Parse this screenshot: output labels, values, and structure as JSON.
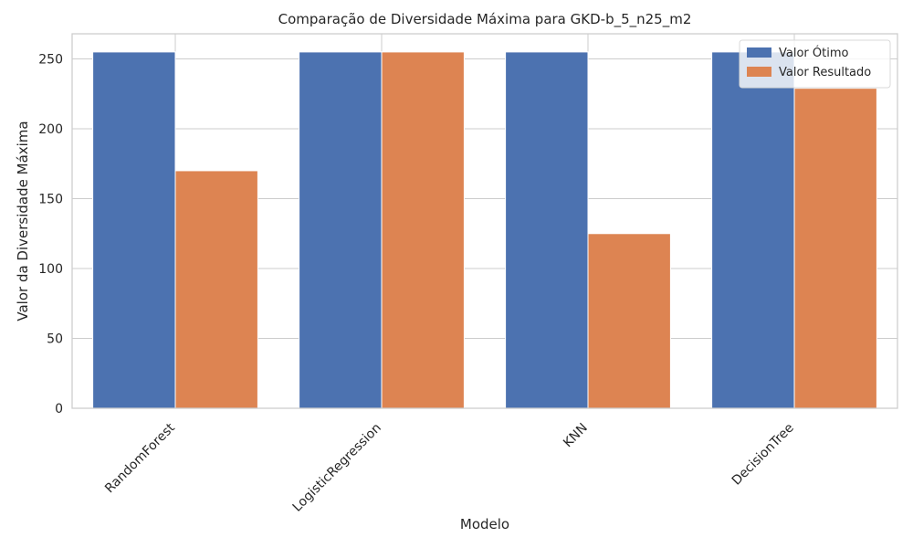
{
  "chart_data": {
    "type": "bar",
    "title": "Comparação de Diversidade Máxima para GKD-b_5_n25_m2",
    "xlabel": "Modelo",
    "ylabel": "Valor da Diversidade Máxima",
    "categories": [
      "RandomForest",
      "LogisticRegression",
      "KNN",
      "DecisionTree"
    ],
    "series": [
      {
        "name": "Valor Ótimo",
        "values": [
          255,
          255,
          255,
          255
        ],
        "color": "#4c72b0"
      },
      {
        "name": "Valor Resultado",
        "values": [
          170,
          255,
          125,
          229
        ],
        "color": "#dd8452"
      }
    ],
    "ylim": [
      0,
      268
    ],
    "yticks": [
      0,
      50,
      100,
      150,
      200,
      250
    ],
    "grid": true,
    "legend_position": "top-right"
  }
}
